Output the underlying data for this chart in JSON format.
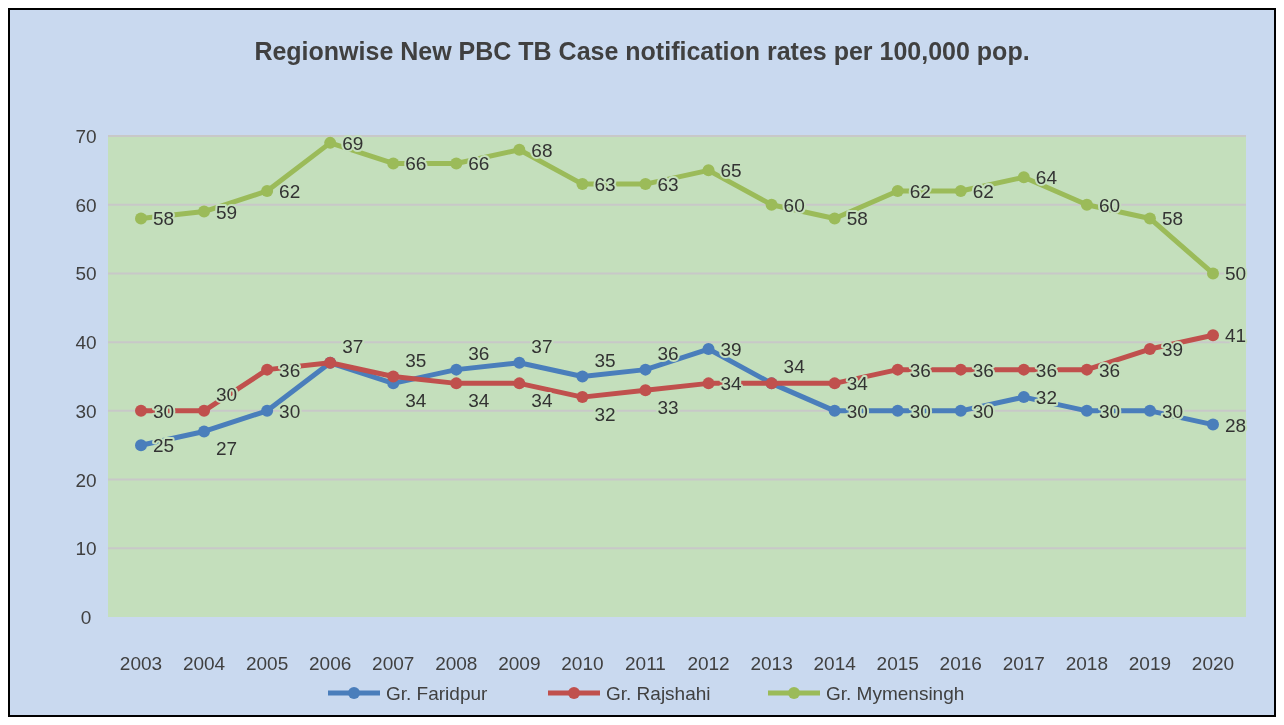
{
  "chart_data": {
    "type": "line",
    "title": "Regionwise New PBC TB Case notification rates per 100,000 pop.",
    "categories": [
      "2003",
      "2004",
      "2005",
      "2006",
      "2007",
      "2008",
      "2009",
      "2010",
      "2011",
      "2012",
      "2013",
      "2014",
      "2015",
      "2016",
      "2017",
      "2018",
      "2019",
      "2020"
    ],
    "series": [
      {
        "name": "Gr. Faridpur",
        "color": "#4a7ebb",
        "values": [
          25,
          27,
          30,
          37,
          34,
          36,
          37,
          35,
          36,
          39,
          34,
          30,
          30,
          30,
          32,
          30,
          30,
          28
        ],
        "value_labels": [
          "25",
          "27",
          "30",
          "37",
          "34",
          "36",
          "37",
          "35",
          "36",
          "39",
          "34",
          "30",
          "30",
          "30",
          "32",
          "30",
          "30",
          "28"
        ]
      },
      {
        "name": "Gr. Rajshahi",
        "color": "#c0504d",
        "values": [
          30,
          30,
          36,
          37,
          35,
          34,
          34,
          32,
          33,
          34,
          34,
          34,
          36,
          36,
          36,
          36,
          39,
          41
        ],
        "value_labels": [
          "30",
          "30",
          "36",
          null,
          "35",
          "34",
          "34",
          "32",
          "33",
          "34",
          null,
          "34",
          "36",
          "36",
          "36",
          "36",
          "39",
          "41"
        ]
      },
      {
        "name": "Gr. Mymensingh",
        "color": "#9bbb59",
        "values": [
          58,
          59,
          62,
          69,
          66,
          66,
          68,
          63,
          63,
          65,
          60,
          58,
          62,
          62,
          64,
          60,
          58,
          50
        ],
        "value_labels": [
          "58",
          "59",
          "62",
          "69",
          "66",
          "66",
          "68",
          "63",
          "63",
          "65",
          "60",
          "58",
          "62",
          "62",
          "64",
          "60",
          "58",
          "50"
        ]
      }
    ],
    "ylim": [
      0,
      70
    ],
    "yticks": [
      0,
      10,
      20,
      30,
      40,
      50,
      60,
      70
    ],
    "grid": "y",
    "legend": "bottom",
    "marker": "circle",
    "line_style": "solid"
  }
}
